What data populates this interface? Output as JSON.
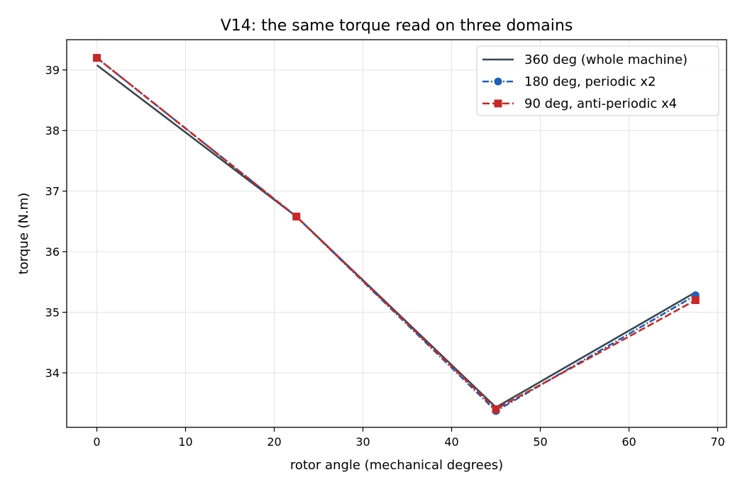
{
  "chart_data": {
    "type": "line",
    "title": "V14: the same torque read on three domains",
    "xlabel": "rotor angle (mechanical degrees)",
    "ylabel": "torque (N.m)",
    "xlim": [
      -3.4,
      71.0
    ],
    "ylim": [
      33.1,
      39.5
    ],
    "xticks": [
      0,
      10,
      20,
      30,
      40,
      50,
      60,
      70
    ],
    "yticks": [
      34,
      35,
      36,
      37,
      38,
      39
    ],
    "grid": true,
    "legend_position": "top-right",
    "series": [
      {
        "name": "360 deg (whole machine)",
        "color": "#37474f",
        "line_style": "solid",
        "marker": "none",
        "x": [
          0,
          22.5,
          45,
          67.5
        ],
        "y": [
          39.08,
          36.58,
          33.43,
          35.33
        ]
      },
      {
        "name": "180 deg, periodic x2",
        "color": "#1e5fb8",
        "line_style": "dashdot",
        "marker": "circle",
        "x": [
          0,
          22.5,
          45,
          67.5
        ],
        "y": [
          39.2,
          36.58,
          33.37,
          35.28
        ]
      },
      {
        "name": "90 deg, anti-periodic x4",
        "color": "#c62828",
        "line_style": "dashed",
        "marker": "square",
        "x": [
          0,
          22.5,
          45,
          67.5
        ],
        "y": [
          39.2,
          36.58,
          33.4,
          35.2
        ]
      }
    ]
  }
}
